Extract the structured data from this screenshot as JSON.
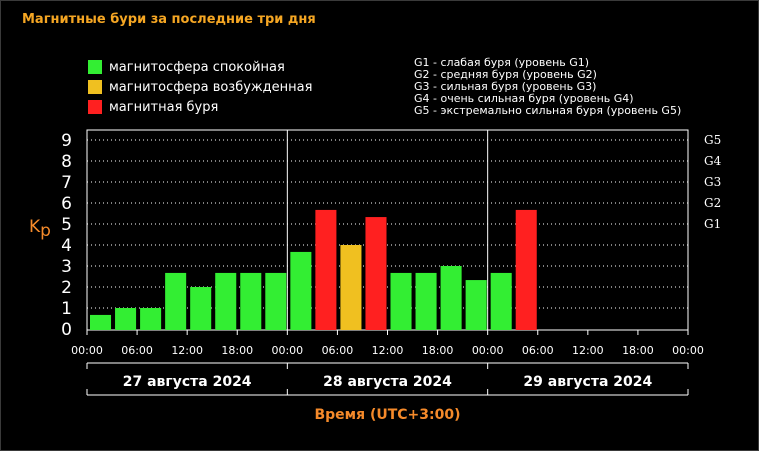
{
  "header": {
    "title": "Магнитные бури за последние три дня"
  },
  "legend": {
    "items": [
      {
        "label": "магнитосфера спокойная",
        "color": "#33ee33"
      },
      {
        "label": "магнитосфера возбужденная",
        "color": "#f0c020"
      },
      {
        "label": "магнитная буря",
        "color": "#ff2020"
      }
    ]
  },
  "g_legend": {
    "items": [
      "G1 - слабая буря (уровень G1)",
      "G2 - средняя буря (уровень G2)",
      "G3 - сильная буря (уровень G3)",
      "G4 - очень сильная буря (уровень G4)",
      "G5 - экстремально сильная буря (уровень G5)"
    ]
  },
  "chart_data": {
    "type": "bar",
    "ylabel": "Kp",
    "xlabel": "Время (UTC+3:00)",
    "ylim": [
      0,
      9
    ],
    "y_ticks": [
      "0",
      "1",
      "2",
      "3",
      "4",
      "5",
      "6",
      "7",
      "8",
      "9"
    ],
    "g_levels": [
      {
        "label": "G1",
        "value": 5
      },
      {
        "label": "G2",
        "value": 6
      },
      {
        "label": "G3",
        "value": 7
      },
      {
        "label": "G4",
        "value": 8
      },
      {
        "label": "G5",
        "value": 9
      }
    ],
    "x_tick_labels": [
      "00:00",
      "06:00",
      "12:00",
      "18:00",
      "00:00",
      "06:00",
      "12:00",
      "18:00",
      "00:00",
      "06:00",
      "12:00",
      "18:00",
      "00:00"
    ],
    "days": [
      "27 августа 2024",
      "28 августа 2024",
      "29 августа 2024"
    ],
    "bar_interval_hours": 3,
    "values": [
      0.67,
      1.0,
      1.0,
      2.67,
      2.0,
      2.67,
      2.67,
      2.67,
      3.67,
      5.67,
      4.0,
      5.33,
      2.67,
      2.67,
      3.0,
      2.33,
      2.67,
      5.67
    ],
    "colors": [
      "#33ee33",
      "#33ee33",
      "#33ee33",
      "#33ee33",
      "#33ee33",
      "#33ee33",
      "#33ee33",
      "#33ee33",
      "#33ee33",
      "#ff2020",
      "#f0c020",
      "#ff2020",
      "#33ee33",
      "#33ee33",
      "#33ee33",
      "#33ee33",
      "#33ee33",
      "#ff2020"
    ],
    "grid": true
  }
}
